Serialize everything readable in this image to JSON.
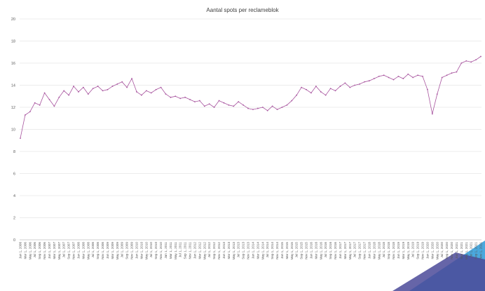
{
  "chart_data": {
    "type": "line",
    "title": "Aantal spots per reclameblok",
    "xlabel": "",
    "ylabel": "",
    "ylim": [
      0,
      20
    ],
    "yticks": [
      0,
      2,
      4,
      6,
      8,
      10,
      12,
      14,
      16,
      18,
      20
    ],
    "grid": true,
    "legend": "none",
    "colors": {
      "series": "#a8559f",
      "grid": "#d9d9d9",
      "text": "#595959",
      "corner_dark": "#4b4a99",
      "corner_light": "#4aa8dd"
    },
    "x": [
      "Jan 1, 2006",
      "Mar 1, 2006",
      "May 1, 2006",
      "Jul 1, 2006",
      "Sep 1, 2006",
      "Nov 1, 2006",
      "Jan 1, 2007",
      "Mar 1, 2007",
      "May 1, 2007",
      "Jul 1, 2007",
      "Sep 1, 2007",
      "Nov 1, 2007",
      "Jan 1, 2008",
      "Mar 1, 2008",
      "May 1, 2008",
      "Jul 1, 2008",
      "Sep 1, 2008",
      "Nov 1, 2008",
      "Jan 1, 2009",
      "Mar 1, 2009",
      "May 1, 2009",
      "Jul 1, 2009",
      "Sep 1, 2009",
      "Nov 1, 2009",
      "Jan 1, 2010",
      "Mar 1, 2010",
      "May 1, 2010",
      "Jul 1, 2010",
      "Sep 1, 2010",
      "Nov 1, 2010",
      "Jan 1, 2011",
      "Mar 1, 2011",
      "May 1, 2011",
      "Jul 1, 2011",
      "Sep 1, 2011",
      "Nov 1, 2011",
      "Jan 1, 2012",
      "Mar 1, 2012",
      "May 1, 2012",
      "Jul 1, 2012",
      "Sep 1, 2012",
      "Nov 1, 2012",
      "Jan 1, 2013",
      "Mar 1, 2013",
      "May 1, 2013",
      "Jul 1, 2013",
      "Sep 1, 2013",
      "Nov 1, 2013",
      "Jan 1, 2014",
      "Mar 1, 2014",
      "May 1, 2014",
      "Jul 1, 2014",
      "Sep 1, 2014",
      "Nov 1, 2014",
      "Jan 1, 2015",
      "Mar 1, 2015",
      "May 1, 2015",
      "Jul 1, 2015",
      "Sep 1, 2015",
      "Nov 1, 2015",
      "Jan 1, 2016",
      "Mar 1, 2016",
      "May 1, 2016",
      "Jul 1, 2016",
      "Sep 1, 2016",
      "Nov 1, 2016",
      "Jan 1, 2017",
      "Mar 1, 2017",
      "May 1, 2017",
      "Jul 1, 2017",
      "Sep 1, 2017",
      "Nov 1, 2017",
      "Jan 1, 2018",
      "Mar 1, 2018",
      "May 1, 2018",
      "Jul 1, 2018",
      "Sep 1, 2018",
      "Nov 1, 2018",
      "Jan 1, 2019",
      "Mar 1, 2019",
      "May 1, 2019",
      "Jul 1, 2019",
      "Sep 1, 2019",
      "Nov 1, 2019",
      "Jan 1, 2020",
      "Mar 1, 2020",
      "May 1, 2020",
      "Jul 1, 2020",
      "Sep 1, 2020",
      "Nov 1, 2020",
      "Jan 1, 2021",
      "Mar 1, 2021",
      "May 1, 2021",
      "Jul 1, 2021",
      "Sep 1, 2021",
      "Nov 1, 2021"
    ],
    "series": [
      {
        "values": [
          9.2,
          11.3,
          11.6,
          12.4,
          12.2,
          13.3,
          12.7,
          12.1,
          12.9,
          13.5,
          13.1,
          13.9,
          13.4,
          13.8,
          13.2,
          13.7,
          13.9,
          13.5,
          13.6,
          13.9,
          14.1,
          14.3,
          13.8,
          14.6,
          13.4,
          13.1,
          13.5,
          13.3,
          13.6,
          13.8,
          13.2,
          12.9,
          13.0,
          12.8,
          12.9,
          12.7,
          12.5,
          12.6,
          12.1,
          12.3,
          12.0,
          12.6,
          12.4,
          12.2,
          12.1,
          12.5,
          12.2,
          11.9,
          11.8,
          11.9,
          12.0,
          11.7,
          12.1,
          11.8,
          12.0,
          12.2,
          12.6,
          13.1,
          13.8,
          13.6,
          13.3,
          13.9,
          13.4,
          13.1,
          13.7,
          13.5,
          13.9,
          14.2,
          13.8,
          14.0,
          14.1,
          14.3,
          14.4,
          14.6,
          14.8,
          14.9,
          14.7,
          14.5,
          14.8,
          14.6,
          15.0,
          14.7,
          14.9,
          14.8,
          13.6,
          11.4,
          13.2,
          14.7,
          14.9,
          15.1,
          15.2,
          16.0,
          16.2,
          16.1,
          16.3,
          16.6
        ]
      }
    ]
  }
}
